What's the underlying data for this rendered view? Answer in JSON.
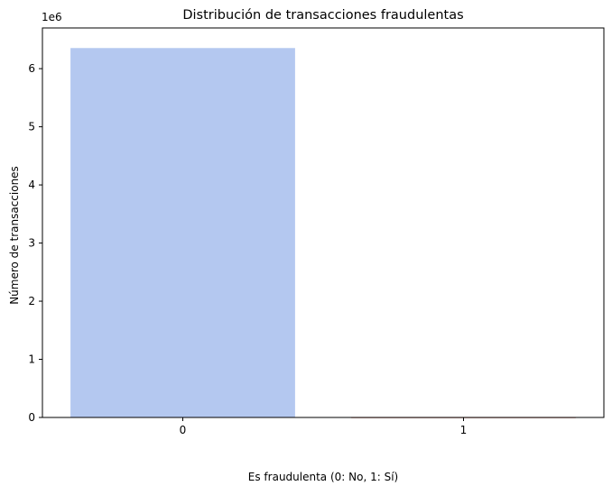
{
  "chart_data": {
    "type": "bar",
    "title": "Distribución de transacciones fraudulentas",
    "xlabel": "Es fraudulenta (0: No, 1: Sí)",
    "ylabel": "Número de transacciones",
    "y_scale_label": "1e6",
    "categories": [
      "0",
      "1"
    ],
    "values": [
      6354407,
      8213
    ],
    "colors": [
      "#b4c8f0",
      "#d6604d"
    ],
    "ylim": [
      0,
      6700000
    ],
    "yticks": [
      0,
      1000000,
      2000000,
      3000000,
      4000000,
      5000000,
      6000000
    ],
    "ytick_labels": [
      "0",
      "1",
      "2",
      "3",
      "4",
      "5",
      "6"
    ],
    "grid": false,
    "legend": "none"
  }
}
